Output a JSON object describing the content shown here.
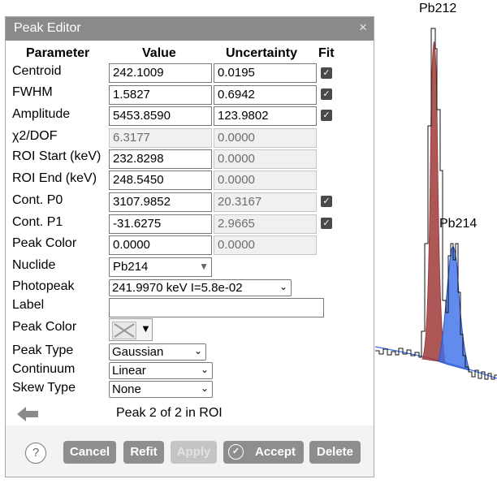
{
  "spectrum": {
    "peak_labels": [
      "Pb212",
      "Pb214"
    ],
    "peak_colors": [
      "#a03a3a",
      "#3a6ee8"
    ],
    "continuum_color": "#3a6ee8"
  },
  "dialog": {
    "title": "Peak Editor",
    "close_icon": "×",
    "headers": {
      "parameter": "Parameter",
      "value": "Value",
      "uncertainty": "Uncertainty",
      "fit": "Fit"
    },
    "rows": {
      "centroid": {
        "label": "Centroid",
        "value": "242.1009",
        "unc": "0.0195",
        "fit": true
      },
      "fwhm": {
        "label": "FWHM",
        "value": "1.5827",
        "unc": "0.6942",
        "fit": true
      },
      "amplitude": {
        "label": "Amplitude",
        "value": "5453.8590",
        "unc": "123.9802",
        "fit": true
      },
      "chi2": {
        "label": "χ2/DOF",
        "value": "6.3177",
        "unc": "0.0000"
      },
      "roi_start": {
        "label": "ROI Start (keV)",
        "value": "232.8298",
        "unc": "0.0000"
      },
      "roi_end": {
        "label": "ROI End (keV)",
        "value": "248.5450",
        "unc": "0.0000"
      },
      "cont_p0": {
        "label": "Cont. P0",
        "value": "3107.9852",
        "unc": "20.3167",
        "fit": true
      },
      "cont_p1": {
        "label": "Cont. P1",
        "value": "-31.6275",
        "unc": "2.9665",
        "fit": true
      },
      "peak_color_val": {
        "label": "Peak Color",
        "value": "0.0000",
        "unc": "0.0000"
      }
    },
    "nuclide": {
      "label": "Nuclide",
      "value": "Pb214"
    },
    "photopeak": {
      "label": "Photopeak",
      "value": "241.9970 keV I=5.8e-02"
    },
    "peak_label": {
      "label": "Label",
      "value": ""
    },
    "peak_color": {
      "label": "Peak Color"
    },
    "peak_type": {
      "label": "Peak Type",
      "value": "Gaussian"
    },
    "continuum": {
      "label": "Continuum",
      "value": "Linear"
    },
    "skew_type": {
      "label": "Skew Type",
      "value": "None"
    },
    "peak_index": "Peak 2 of 2 in ROI",
    "buttons": {
      "help": "?",
      "cancel": "Cancel",
      "refit": "Refit",
      "apply": "Apply",
      "accept": "Accept",
      "delete": "Delete"
    }
  }
}
